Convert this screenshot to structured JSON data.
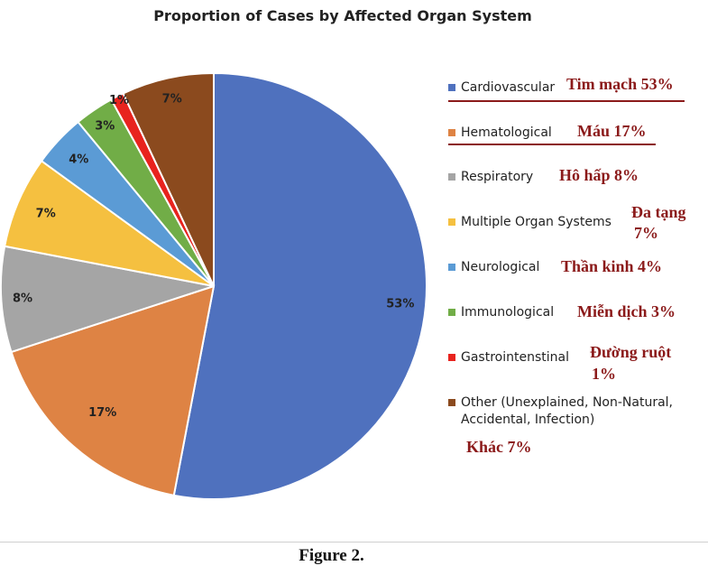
{
  "chart_data": {
    "type": "pie",
    "title": "Proportion of Cases by Affected Organ System",
    "categories": [
      "Cardiovascular",
      "Hematological",
      "Respiratory",
      "Multiple Organ Systems",
      "Neurological",
      "Immunological",
      "Gastrointenstinal",
      "Other (Unexplained, Non-Natural, Accidental, Infection)"
    ],
    "values": [
      53,
      17,
      8,
      7,
      4,
      3,
      1,
      7
    ],
    "value_labels": [
      "53%",
      "17%",
      "8%",
      "7%",
      "4%",
      "3%",
      "1%",
      "7%"
    ],
    "colors": [
      "#4f71be",
      "#de8344",
      "#a5a5a5",
      "#f5c040",
      "#5b9bd5",
      "#71ad47",
      "#e8231e",
      "#8b4a1e"
    ],
    "legend_position": "right"
  },
  "annotations": {
    "cardiovascular": "Tim mạch 53%",
    "hematological": "Máu 17%",
    "respiratory": "Hô hấp 8%",
    "multiple_line1": "Đa tạng",
    "multiple_line2": "7%",
    "neurological": "Thần kinh 4%",
    "immunological": "Miễn dịch 3%",
    "gastro_line1": "Đường ruột",
    "gastro_line2": "1%",
    "other": "Khác 7%"
  },
  "caption": "Figure 2."
}
